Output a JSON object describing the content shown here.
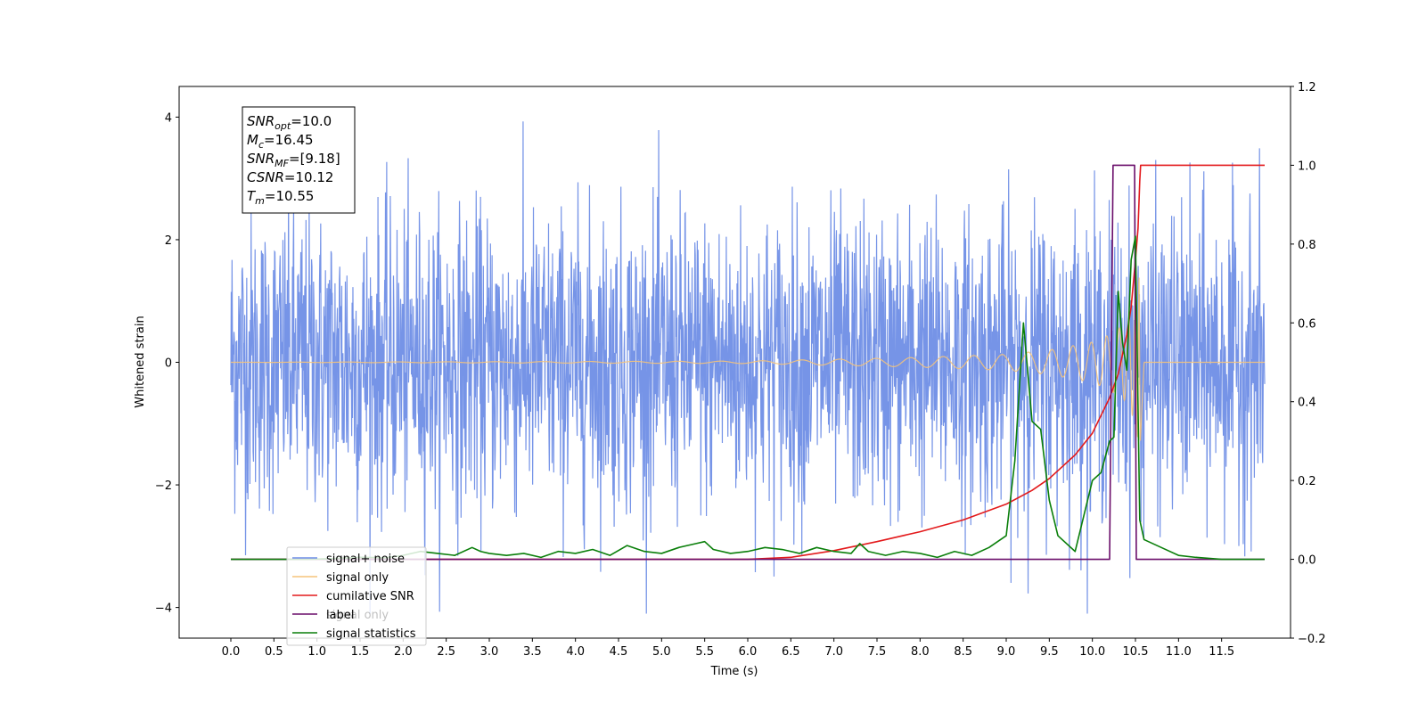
{
  "chart_data": {
    "type": "line",
    "title": "",
    "xlabel": "Time (s)",
    "ylabel": "Whitened strain",
    "xlim": [
      -0.6,
      12.3
    ],
    "ylim_left": [
      -4.5,
      4.5
    ],
    "ylim_right": [
      -0.2,
      1.2
    ],
    "x_ticks": [
      "0.0",
      "0.5",
      "1.0",
      "1.5",
      "2.0",
      "2.5",
      "3.0",
      "3.5",
      "4.0",
      "4.5",
      "5.0",
      "5.5",
      "6.0",
      "6.5",
      "7.0",
      "7.5",
      "8.0",
      "8.5",
      "9.0",
      "9.5",
      "10.0",
      "10.5",
      "11.0",
      "11.5"
    ],
    "y_ticks_left": [
      "4",
      "2",
      "0",
      "−2",
      "−4"
    ],
    "y_ticks_right": [
      "1.2",
      "1.0",
      "0.8",
      "0.6",
      "0.4",
      "0.2",
      "0.0",
      "−0.2"
    ],
    "grid": false,
    "legend_placement": "lower-left",
    "annotation": {
      "lines": [
        {
          "base": "SNR",
          "sub": "opt",
          "value": "=10.0"
        },
        {
          "base": "M",
          "sub": "c",
          "value": "=16.45"
        },
        {
          "base": "SNR",
          "sub": "MF",
          "value": "=[9.18]"
        },
        {
          "base": "CSNR",
          "sub": "",
          "value": "=10.12"
        },
        {
          "base": "T",
          "sub": "m",
          "value": "=10.55"
        }
      ]
    },
    "series": [
      {
        "name": "signal+ noise",
        "axis": "left",
        "color": "#6f8ee6",
        "x_range": [
          0.0,
          12.0
        ],
        "noise_std": 1.2,
        "envelope_range": [
          -4.1,
          4.1
        ]
      },
      {
        "name": "signal only",
        "axis": "left",
        "color": "#f5c37a",
        "x": [
          0.0,
          6.0,
          8.0,
          9.0,
          9.5,
          10.0,
          10.2,
          10.4,
          10.5,
          10.55,
          10.6,
          12.0
        ],
        "amplitude": [
          0.0,
          0.02,
          0.08,
          0.13,
          0.2,
          0.33,
          0.45,
          0.65,
          1.0,
          1.5,
          0.0,
          0.0
        ]
      },
      {
        "name": "cumilative SNR",
        "axis": "right",
        "color": "#e31a1c",
        "x": [
          0.0,
          6.0,
          6.5,
          7.0,
          7.5,
          8.0,
          8.5,
          9.0,
          9.3,
          9.5,
          9.8,
          10.0,
          10.2,
          10.3,
          10.4,
          10.45,
          10.5,
          10.53,
          10.54,
          10.55,
          10.56,
          12.0
        ],
        "y": [
          0.0,
          0.0,
          0.005,
          0.022,
          0.045,
          0.07,
          0.1,
          0.14,
          0.175,
          0.205,
          0.265,
          0.32,
          0.41,
          0.47,
          0.57,
          0.64,
          0.76,
          0.84,
          0.9,
          0.96,
          1.0,
          1.0
        ]
      },
      {
        "name": "label",
        "axis": "right",
        "color": "#6a0d6a",
        "x": [
          0.0,
          10.18,
          10.2,
          10.24,
          10.49,
          10.51,
          10.53,
          12.0
        ],
        "y": [
          0.0,
          0.0,
          0.0,
          1.0,
          1.0,
          0.0,
          0.0,
          0.0
        ]
      },
      {
        "name": "signal statistics",
        "axis": "right",
        "color": "#0a7f0a",
        "x": [
          0.0,
          0.3,
          0.6,
          0.9,
          1.2,
          1.5,
          1.8,
          2.0,
          2.2,
          2.4,
          2.6,
          2.8,
          2.9,
          3.0,
          3.2,
          3.4,
          3.6,
          3.8,
          4.0,
          4.2,
          4.4,
          4.6,
          4.8,
          5.0,
          5.2,
          5.4,
          5.5,
          5.6,
          5.8,
          6.0,
          6.2,
          6.4,
          6.6,
          6.8,
          7.0,
          7.2,
          7.3,
          7.4,
          7.6,
          7.8,
          8.0,
          8.2,
          8.4,
          8.6,
          8.8,
          9.0,
          9.1,
          9.2,
          9.3,
          9.4,
          9.5,
          9.6,
          9.8,
          10.0,
          10.1,
          10.2,
          10.25,
          10.3,
          10.35,
          10.4,
          10.45,
          10.5,
          10.55,
          10.6,
          10.8,
          11.0,
          11.2,
          11.5,
          12.0
        ],
        "y": [
          0.0,
          0.0,
          0.0,
          0.0,
          0.002,
          0.005,
          0.004,
          0.01,
          0.02,
          0.015,
          0.01,
          0.03,
          0.02,
          0.015,
          0.01,
          0.015,
          0.005,
          0.02,
          0.015,
          0.025,
          0.01,
          0.035,
          0.02,
          0.015,
          0.03,
          0.04,
          0.045,
          0.025,
          0.015,
          0.02,
          0.03,
          0.025,
          0.015,
          0.03,
          0.02,
          0.015,
          0.04,
          0.02,
          0.01,
          0.02,
          0.015,
          0.005,
          0.02,
          0.01,
          0.03,
          0.06,
          0.25,
          0.6,
          0.35,
          0.33,
          0.15,
          0.06,
          0.02,
          0.2,
          0.22,
          0.3,
          0.31,
          0.68,
          0.55,
          0.48,
          0.76,
          0.82,
          0.1,
          0.05,
          0.03,
          0.01,
          0.005,
          0.0,
          0.0
        ]
      }
    ],
    "legend_entries": [
      "signal+ noise",
      "signal only",
      "cumilative SNR",
      "label",
      "signal statistics"
    ],
    "legend_hidden_entry": "signal only"
  }
}
